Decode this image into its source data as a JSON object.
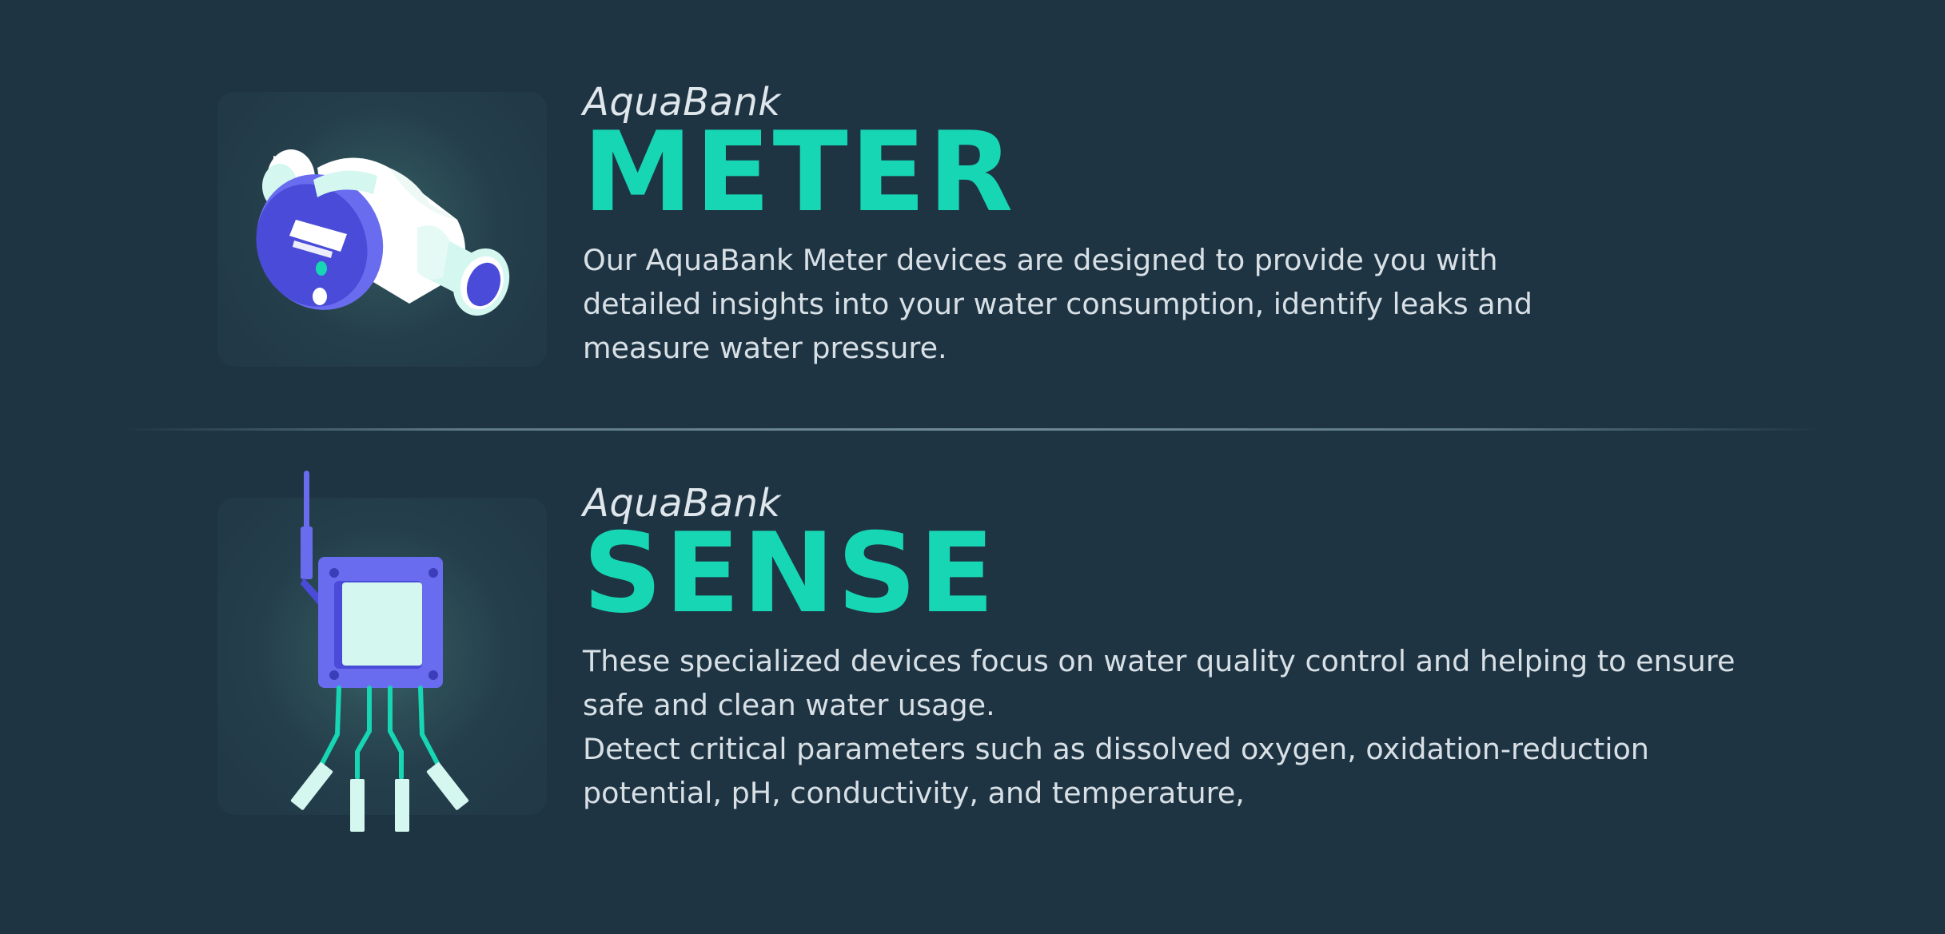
{
  "products": {
    "meter": {
      "brand": "AquaBank",
      "name": "METER",
      "description": [
        "Our AquaBank Meter devices are designed to provide you with detailed insights into your water consumption, identify leaks and measure water pressure."
      ],
      "icon": "water-meter-icon"
    },
    "sense": {
      "brand": "AquaBank",
      "name": "SENSE",
      "description": [
        "These specialized devices focus on water quality control and helping to ensure safe and clean water usage.",
        "Detect critical parameters such as dissolved oxygen, oxidation-reduction potential, pH, conductivity, and temperature,"
      ],
      "icon": "water-sensor-icon"
    }
  },
  "colors": {
    "background": "#1e3443",
    "accent": "#17d6b4",
    "device_blue": "#4a4bd8",
    "device_light": "#d4f7ef"
  }
}
